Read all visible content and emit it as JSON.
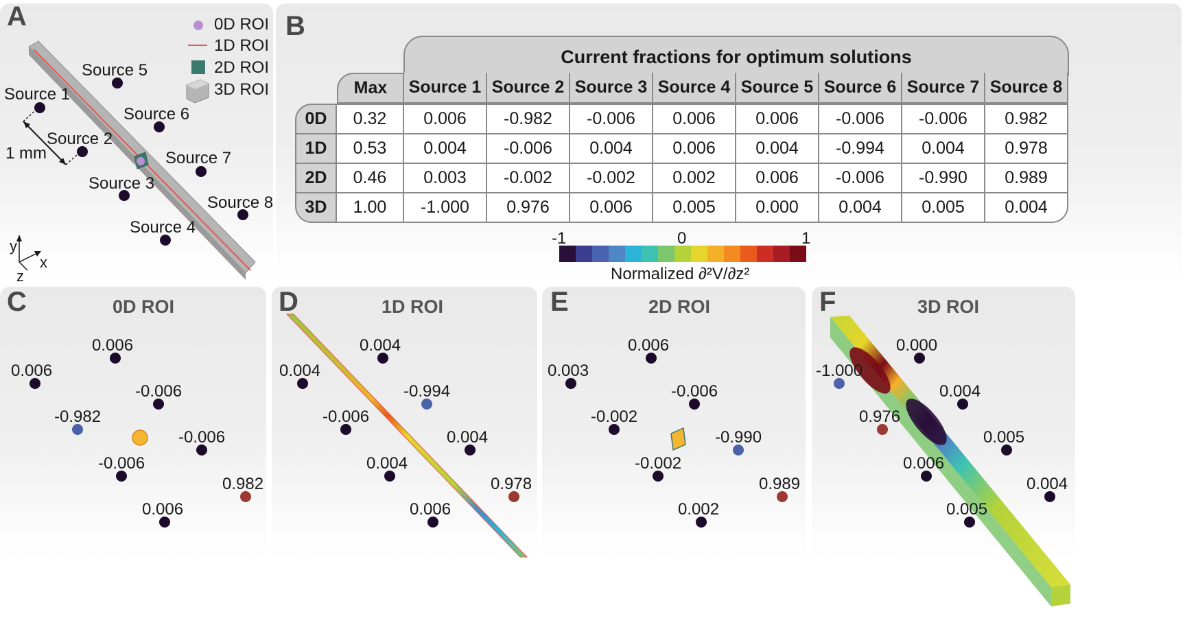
{
  "figure": {
    "panel_letters": {
      "a": "A",
      "b": "B",
      "c": "C",
      "d": "D",
      "e": "E",
      "f": "F"
    },
    "panel_a": {
      "legend": [
        "0D ROI",
        "1D ROI",
        "2D ROI",
        "3D ROI"
      ],
      "sources": [
        "Source 1",
        "Source 2",
        "Source 3",
        "Source 4",
        "Source 5",
        "Source 6",
        "Source 7",
        "Source 8"
      ],
      "scale_label": "1 mm",
      "axes": {
        "x": "x",
        "y": "y",
        "z": "z"
      }
    },
    "panel_b": {
      "header": "Current fractions for optimum solutions",
      "columns": [
        "Max",
        "Source 1",
        "Source 2",
        "Source 3",
        "Source 4",
        "Source 5",
        "Source 6",
        "Source 7",
        "Source 8"
      ],
      "rows": [
        {
          "label": "0D",
          "cells": [
            "0.32",
            "0.006",
            "-0.982",
            "-0.006",
            "0.006",
            "0.006",
            "-0.006",
            "-0.006",
            "0.982"
          ]
        },
        {
          "label": "1D",
          "cells": [
            "0.53",
            "0.004",
            "-0.006",
            "0.004",
            "0.006",
            "0.004",
            "-0.994",
            "0.004",
            "0.978"
          ]
        },
        {
          "label": "2D",
          "cells": [
            "0.46",
            "0.003",
            "-0.002",
            "-0.002",
            "0.002",
            "0.006",
            "-0.006",
            "-0.990",
            "0.989"
          ]
        },
        {
          "label": "3D",
          "cells": [
            "1.00",
            "-1.000",
            "0.976",
            "0.006",
            "0.005",
            "0.000",
            "0.004",
            "0.005",
            "0.004"
          ]
        }
      ]
    },
    "colorbar": {
      "min_label": "-1",
      "mid_label": "0",
      "max_label": "1",
      "label": "Normalized ∂²V/∂z²",
      "colors": [
        "#2a0f3a",
        "#3a3f8f",
        "#4a62b0",
        "#4f86c6",
        "#2bb3d8",
        "#3ec3b2",
        "#7cc76e",
        "#b4d23a",
        "#e6d52c",
        "#f5b02a",
        "#f48a22",
        "#ea5a1c",
        "#cc2d26",
        "#a81c24",
        "#7a0c18"
      ]
    },
    "roi_panels": [
      {
        "title": "0D ROI",
        "values": [
          "0.006",
          "-0.982",
          "-0.006",
          "0.006",
          "0.006",
          "-0.006",
          "-0.006",
          "0.982"
        ]
      },
      {
        "title": "1D ROI",
        "values": [
          "0.004",
          "-0.006",
          "0.004",
          "0.006",
          "0.004",
          "-0.994",
          "0.004",
          "0.978"
        ]
      },
      {
        "title": "2D ROI",
        "values": [
          "0.003",
          "-0.002",
          "-0.002",
          "0.002",
          "0.006",
          "-0.006",
          "-0.990",
          "0.989"
        ]
      },
      {
        "title": "3D ROI",
        "values": [
          "-1.000",
          "0.976",
          "0.006",
          "0.005",
          "0.000",
          "0.004",
          "0.005",
          "0.004"
        ]
      }
    ]
  }
}
